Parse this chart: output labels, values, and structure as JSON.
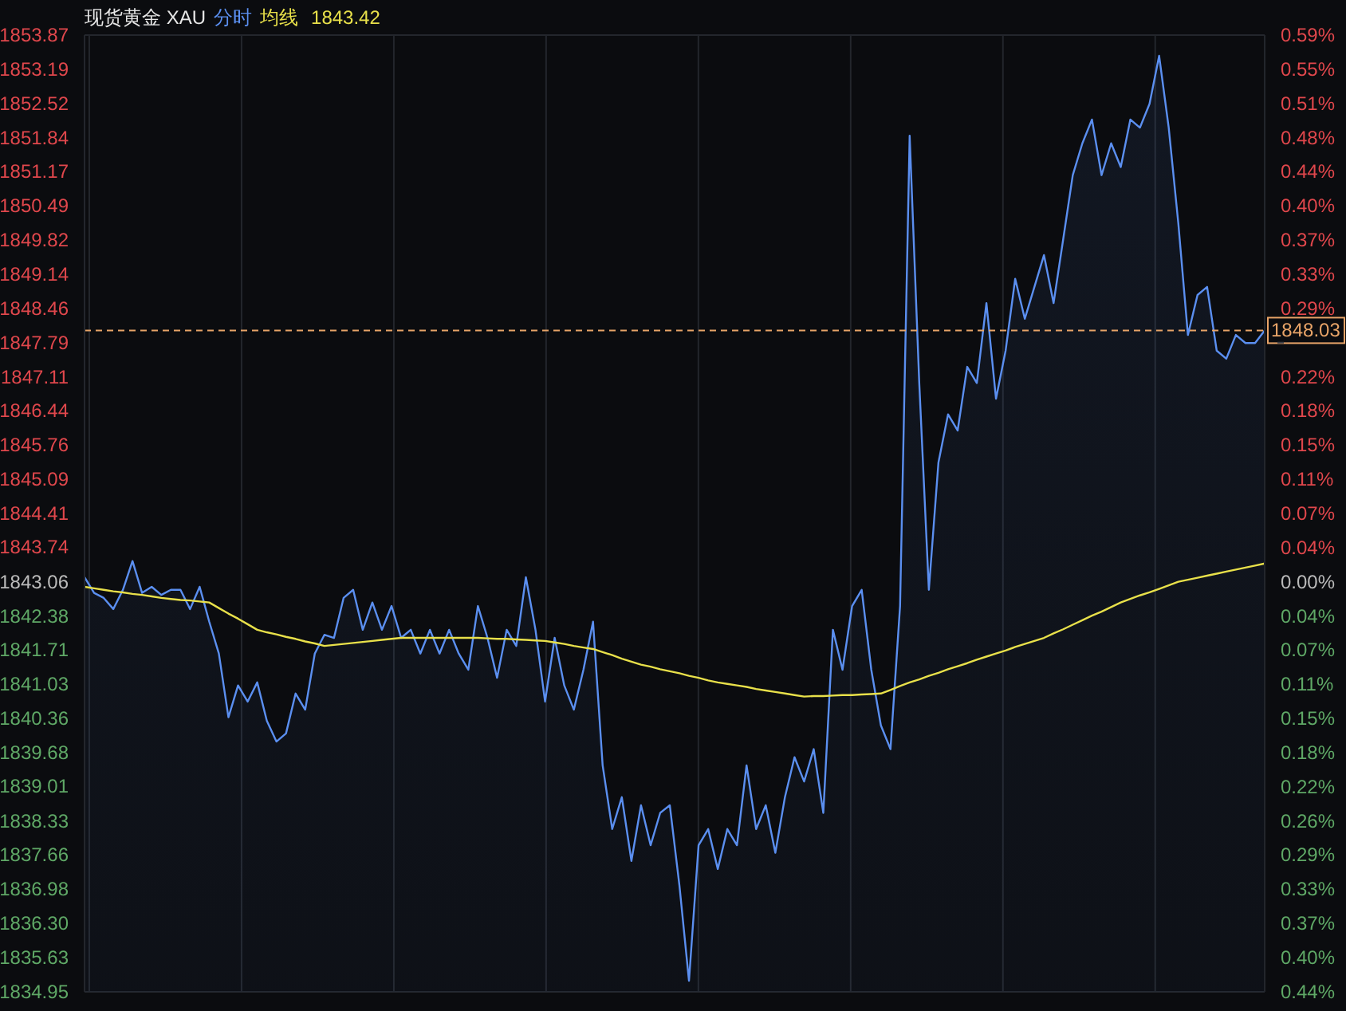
{
  "chart_data": {
    "type": "line",
    "title": "现货黄金 XAU",
    "categories": [
      null,
      null,
      null,
      null,
      null,
      null,
      null,
      null,
      null,
      null,
      null,
      null,
      null,
      null,
      null,
      null,
      null,
      null,
      null,
      null,
      null,
      null,
      null,
      null,
      null,
      null,
      null,
      null,
      null,
      null,
      null,
      null,
      null,
      null,
      null,
      null,
      null,
      null,
      null,
      null,
      null,
      null,
      null,
      null,
      null,
      null,
      null,
      null,
      null,
      null,
      null,
      null,
      null,
      null,
      null,
      null,
      null,
      null,
      null,
      null,
      null,
      null,
      null,
      null,
      null,
      null,
      null,
      null,
      null,
      null,
      null,
      null,
      null,
      null,
      null,
      null,
      null,
      null,
      null,
      null,
      null,
      null,
      null,
      null,
      null,
      null,
      null,
      null,
      null,
      null,
      null,
      null,
      null,
      null,
      null,
      null,
      null,
      null,
      null,
      null,
      null,
      null,
      null,
      null,
      null,
      null,
      null,
      null,
      null,
      null,
      null,
      null,
      null,
      null,
      null,
      null,
      null,
      null,
      null,
      null,
      null,
      null,
      null,
      null
    ],
    "series": [
      {
        "name": "分时",
        "type": "area",
        "color": "#5b8ff0",
        "values": [
          1843.15,
          1842.84,
          1842.74,
          1842.52,
          1842.9,
          1843.47,
          1842.84,
          1842.96,
          1842.8,
          1842.9,
          1842.9,
          1842.52,
          1842.96,
          1842.27,
          1841.64,
          1840.38,
          1841.01,
          1840.69,
          1841.07,
          1840.31,
          1839.9,
          1840.06,
          1840.85,
          1840.53,
          1841.64,
          1842.01,
          1841.95,
          1842.74,
          1842.9,
          1842.11,
          1842.65,
          1842.11,
          1842.58,
          1841.95,
          1842.11,
          1841.64,
          1842.11,
          1841.64,
          1842.11,
          1841.64,
          1841.32,
          1842.58,
          1841.95,
          1841.16,
          1842.11,
          1841.79,
          1843.15,
          1842.11,
          1840.69,
          1841.95,
          1841.01,
          1840.53,
          1841.32,
          1842.27,
          1839.43,
          1838.17,
          1838.8,
          1837.54,
          1838.64,
          1837.85,
          1838.49,
          1838.64,
          1837.06,
          1835.17,
          1837.85,
          1838.17,
          1837.38,
          1838.17,
          1837.85,
          1839.43,
          1838.17,
          1838.64,
          1837.7,
          1838.8,
          1839.59,
          1839.11,
          1839.75,
          1838.49,
          1842.11,
          1841.32,
          1842.58,
          1842.9,
          1841.32,
          1840.22,
          1839.75,
          1842.58,
          1851.88,
          1846.99,
          1842.9,
          1845.42,
          1846.37,
          1846.05,
          1847.31,
          1846.99,
          1848.57,
          1846.68,
          1847.63,
          1849.05,
          1848.26,
          1848.89,
          1849.52,
          1848.57,
          1849.83,
          1851.1,
          1851.73,
          1852.2,
          1851.1,
          1851.73,
          1851.26,
          1852.2,
          1852.04,
          1852.51,
          1853.46,
          1852.04,
          1850.15,
          1847.94,
          1848.73,
          1848.89,
          1847.63,
          1847.47,
          1847.94,
          1847.78,
          1847.78,
          1848.03
        ]
      },
      {
        "name": "均线",
        "type": "line",
        "color": "#e8e04a",
        "values": [
          1842.96,
          1842.93,
          1842.9,
          1842.87,
          1842.85,
          1842.82,
          1842.8,
          1842.77,
          1842.74,
          1842.72,
          1842.7,
          1842.69,
          1842.67,
          1842.65,
          1842.54,
          1842.43,
          1842.33,
          1842.22,
          1842.11,
          1842.06,
          1842.02,
          1841.97,
          1841.93,
          1841.88,
          1841.84,
          1841.79,
          1841.81,
          1841.83,
          1841.85,
          1841.87,
          1841.89,
          1841.91,
          1841.93,
          1841.95,
          1841.95,
          1841.95,
          1841.95,
          1841.95,
          1841.95,
          1841.95,
          1841.95,
          1841.95,
          1841.94,
          1841.93,
          1841.93,
          1841.92,
          1841.91,
          1841.9,
          1841.89,
          1841.86,
          1841.83,
          1841.79,
          1841.76,
          1841.73,
          1841.67,
          1841.61,
          1841.54,
          1841.48,
          1841.42,
          1841.38,
          1841.33,
          1841.29,
          1841.25,
          1841.2,
          1841.16,
          1841.11,
          1841.07,
          1841.04,
          1841.01,
          1840.98,
          1840.94,
          1840.91,
          1840.88,
          1840.85,
          1840.82,
          1840.79,
          1840.8,
          1840.8,
          1840.81,
          1840.82,
          1840.82,
          1840.83,
          1840.84,
          1840.85,
          1840.92,
          1841.0,
          1841.07,
          1841.13,
          1841.2,
          1841.26,
          1841.33,
          1841.39,
          1841.45,
          1841.52,
          1841.58,
          1841.64,
          1841.7,
          1841.77,
          1841.83,
          1841.89,
          1841.95,
          1842.04,
          1842.12,
          1842.21,
          1842.3,
          1842.39,
          1842.47,
          1842.56,
          1842.65,
          1842.72,
          1842.79,
          1842.85,
          1842.92,
          1842.99,
          1843.06,
          1843.1,
          1843.14,
          1843.18,
          1843.22,
          1843.26,
          1843.3,
          1843.34,
          1843.38,
          1843.42
        ]
      }
    ],
    "ylim": [
      1834.95,
      1853.87
    ],
    "yticks": [
      1853.87,
      1853.19,
      1852.52,
      1851.84,
      1851.17,
      1850.49,
      1849.82,
      1849.14,
      1848.46,
      1847.79,
      1847.11,
      1846.44,
      1845.76,
      1845.09,
      1844.41,
      1843.74,
      1843.06,
      1842.38,
      1841.71,
      1841.03,
      1840.36,
      1839.68,
      1839.01,
      1838.33,
      1837.66,
      1836.98,
      {
        "value": 1836.3,
        "label": "1836.30"
      },
      1835.63,
      1834.95
    ],
    "y2lim": [
      -0.4408,
      0.5877
    ],
    "y2ticks": [
      {
        "value": 0.5877,
        "label": "0.59%"
      },
      {
        "value": 0.551,
        "label": "0.55%"
      },
      {
        "value": 0.5142,
        "label": "0.51%"
      },
      {
        "value": 0.4775,
        "label": "0.48%"
      },
      {
        "value": 0.4408,
        "label": "0.44%"
      },
      {
        "value": 0.404,
        "label": "0.40%"
      },
      {
        "value": 0.3673,
        "label": "0.37%"
      },
      {
        "value": 0.3306,
        "label": "0.33%"
      },
      {
        "value": 0.2938,
        "label": "0.29%"
      },
      {
        "value": 0.2571,
        "label": null
      },
      {
        "value": 0.2204,
        "label": "0.22%"
      },
      {
        "value": 0.1837,
        "label": "0.18%"
      },
      {
        "value": 0.1469,
        "label": "0.15%"
      },
      {
        "value": 0.1102,
        "label": "0.11%"
      },
      {
        "value": 0.0735,
        "label": "0.07%"
      },
      {
        "value": 0.0367,
        "label": "0.04%"
      },
      {
        "value": 0,
        "label": "0.00%"
      },
      {
        "value": -0.0367,
        "label": "0.04%"
      },
      {
        "value": -0.0735,
        "label": "0.07%"
      },
      {
        "value": -0.1102,
        "label": "0.11%"
      },
      {
        "value": -0.1469,
        "label": "0.15%"
      },
      {
        "value": -0.1837,
        "label": "0.18%"
      },
      {
        "value": -0.2204,
        "label": "0.22%"
      },
      {
        "value": -0.2571,
        "label": "0.26%"
      },
      {
        "value": -0.2938,
        "label": "0.29%"
      },
      {
        "value": -0.3306,
        "label": "0.33%"
      },
      {
        "value": -0.3673,
        "label": "0.37%"
      },
      {
        "value": -0.404,
        "label": "0.40%"
      },
      {
        "value": -0.4408,
        "label": "0.44%"
      }
    ],
    "ref_lines": [
      {
        "axis": "y",
        "value": 1848.03,
        "label": "1848.03",
        "color": "#e8a468",
        "line_style": "dashed"
      }
    ],
    "annotations": [
      "1843.42"
    ],
    "grid": true,
    "legend": "top",
    "marker": "none",
    "line_style": "solid"
  }
}
